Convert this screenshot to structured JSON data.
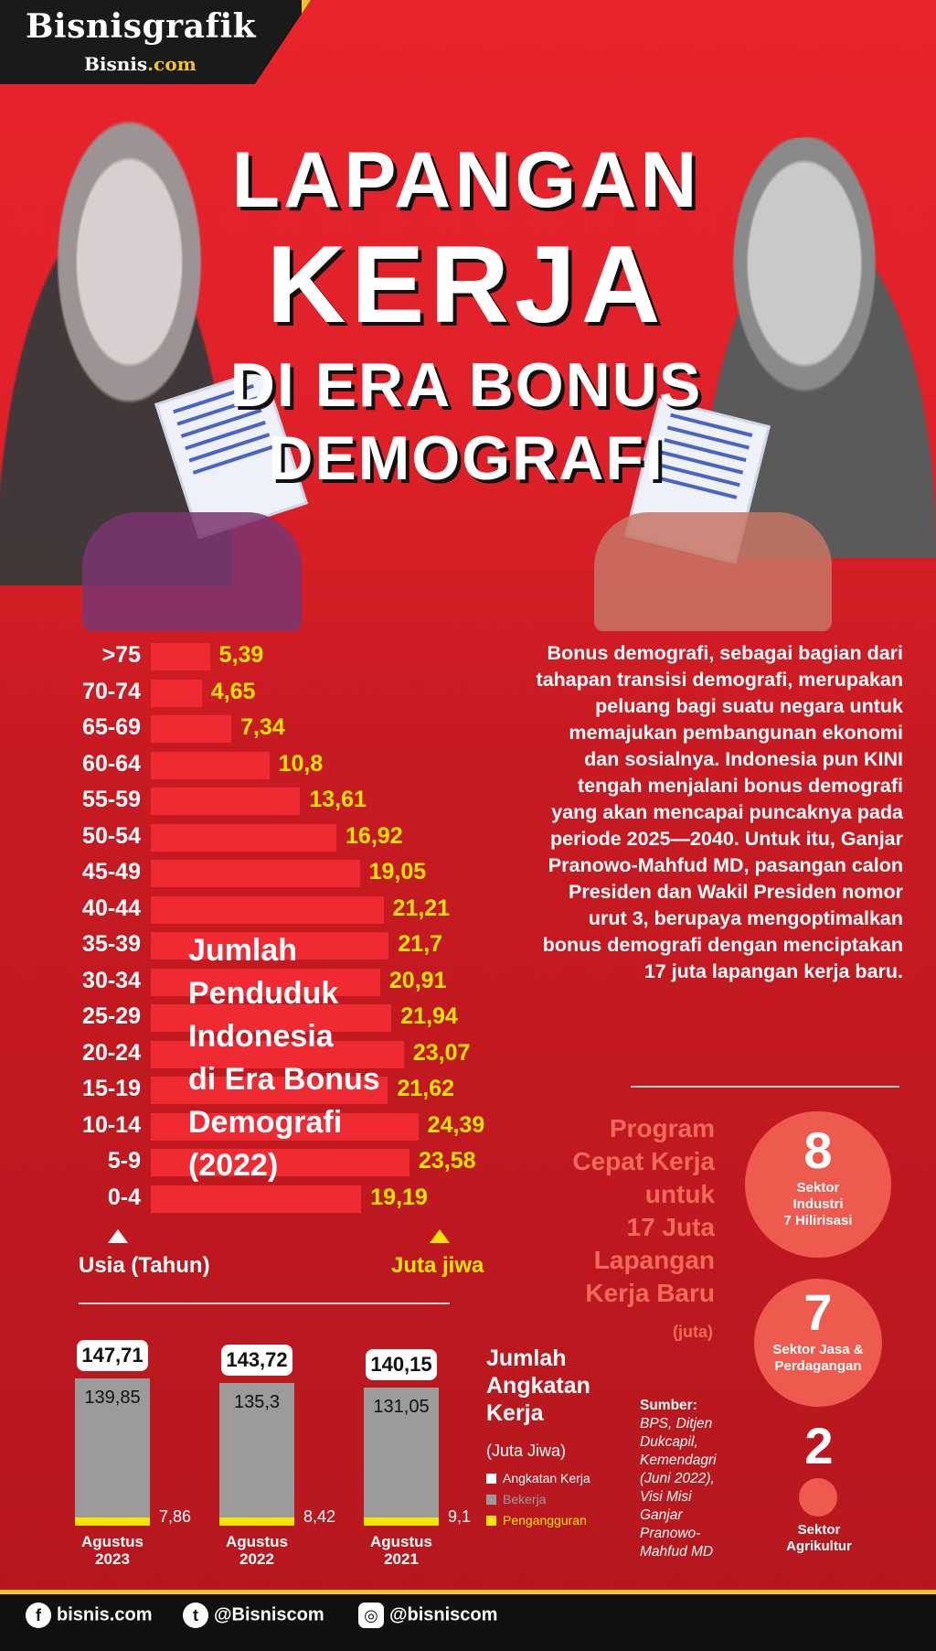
{
  "brand": {
    "name": "Bisnisgrafik",
    "site_prefix": "Bisnis",
    "site_suffix": ".com"
  },
  "title": {
    "line1": "LAPANGAN",
    "line2": "KERJA",
    "line3": "DI ERA BONUS",
    "line4": "DEMOGRAFI"
  },
  "paragraph": "Bonus demografi, sebagai bagian dari tahapan transisi demografi, merupakan peluang bagi suatu negara untuk memajukan pembangunan ekonomi dan sosialnya. Indonesia pun KINI tengah menjalani bonus demografi yang akan mencapai puncaknya pada periode 2025—2040. Untuk itu, Ganjar Pranowo-Mahfud MD, pasangan calon Presiden dan Wakil Presiden nomor urut 3, berupaya mengoptimalkan bonus demografi dengan menciptakan 17 juta lapangan kerja baru.",
  "program": {
    "title_lines": [
      "Program",
      "Cepat Kerja",
      "untuk",
      "17 Juta",
      "Lapangan",
      "Kerja Baru"
    ],
    "unit": "(juta)",
    "items": [
      {
        "value": "8",
        "label_lines": [
          "Sektor",
          "Industri",
          "7 Hilirisasi"
        ]
      },
      {
        "value": "7",
        "label_lines": [
          "Sektor Jasa &",
          "Perdagangan"
        ]
      },
      {
        "value": "2",
        "label_lines": [
          "Sektor",
          "Agrikultur"
        ]
      }
    ]
  },
  "source": {
    "label": "Sumber:",
    "lines": [
      "BPS, Ditjen",
      "Dukcapil,",
      "Kemendagri",
      "(Juni 2022),",
      "Visi Misi",
      "Ganjar",
      "Pranowo-",
      "Mahfud MD"
    ]
  },
  "footer": {
    "facebook": "bisnis.com",
    "twitter": "@Bisniscom",
    "instagram": "@bisniscom"
  },
  "colors": {
    "accent_red": "#e8242c",
    "bar_red": "#ef2a32",
    "value_yellow": "#f5e400",
    "brand_gold": "#f2c12e",
    "employed_grey": "#9b9b9b"
  },
  "chart_data": [
    {
      "type": "bar",
      "orientation": "horizontal",
      "title_lines": [
        "Jumlah",
        "Penduduk",
        "Indonesia",
        "di Era Bonus",
        "Demografi",
        "(2022)"
      ],
      "xlabel": "Juta jiwa",
      "ylabel": "Usia (Tahun)",
      "categories": [
        ">75",
        "70-74",
        "65-69",
        "60-64",
        "55-59",
        "50-54",
        "45-49",
        "40-44",
        "35-39",
        "30-34",
        "25-29",
        "20-24",
        "15-19",
        "10-14",
        "5-9",
        "0-4"
      ],
      "values": [
        5.39,
        4.65,
        7.34,
        10.8,
        13.61,
        16.92,
        19.05,
        21.21,
        21.7,
        20.91,
        21.94,
        23.07,
        21.62,
        24.39,
        23.58,
        19.19
      ],
      "value_labels": [
        "5,39",
        "4,65",
        "7,34",
        "10,8",
        "13,61",
        "16,92",
        "19,05",
        "21,21",
        "21,7",
        "20,91",
        "21,94",
        "23,07",
        "21,62",
        "24,39",
        "23,58",
        "19,19"
      ]
    },
    {
      "type": "bar",
      "stacked": true,
      "title_lines": [
        "Jumlah",
        "Angkatan",
        "Kerja"
      ],
      "unit": "(Juta Jiwa)",
      "legend": [
        "Angkatan Kerja",
        "Bekerja",
        "Pengangguran"
      ],
      "categories": [
        [
          "Agustus",
          "2023"
        ],
        [
          "Agustus",
          "2022"
        ],
        [
          "Agustus",
          "2021"
        ]
      ],
      "series": [
        {
          "name": "Angkatan Kerja",
          "values": [
            147.71,
            143.72,
            140.15
          ],
          "labels": [
            "147,71",
            "143,72",
            "140,15"
          ]
        },
        {
          "name": "Bekerja",
          "values": [
            139.85,
            135.3,
            131.05
          ],
          "labels": [
            "139,85",
            "135,3",
            "131,05"
          ]
        },
        {
          "name": "Pengangguran",
          "values": [
            7.86,
            8.42,
            9.1
          ],
          "labels": [
            "7,86",
            "8,42",
            "9,1"
          ]
        }
      ]
    }
  ]
}
